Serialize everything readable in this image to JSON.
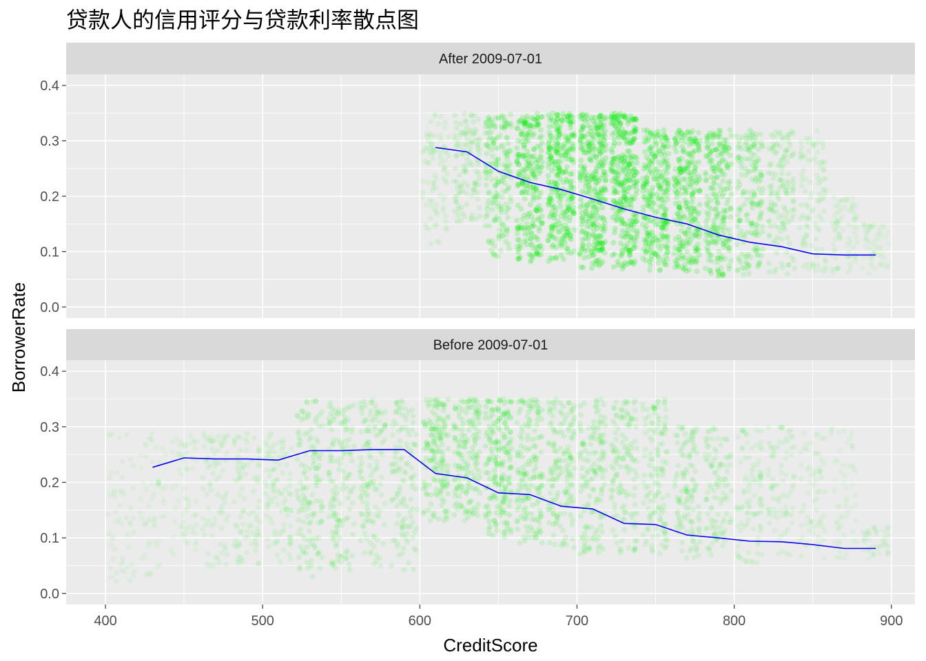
{
  "chart_data": {
    "type": "scatter",
    "title": "贷款人的信用评分与贷款利率散点图",
    "xlabel": "CreditScore",
    "ylabel": "BorrowerRate",
    "xlim": [
      375,
      915
    ],
    "ylim": [
      -0.02,
      0.42
    ],
    "x_ticks": [
      "400",
      "500",
      "600",
      "700",
      "800",
      "900"
    ],
    "y_ticks": [
      "0.0",
      "0.1",
      "0.2",
      "0.3",
      "0.4"
    ],
    "grid": true,
    "point_color": "#00ee00",
    "line_color": "#0000ee",
    "panel_bg": "#ebebeb",
    "strip_bg": "#d9d9d9",
    "panels": [
      {
        "label": "After 2009-07-01",
        "points": [
          {
            "score": 610,
            "min": 0.11,
            "max": 0.35,
            "density": 0.18
          },
          {
            "score": 630,
            "min": 0.15,
            "max": 0.35,
            "density": 0.28
          },
          {
            "score": 650,
            "min": 0.09,
            "max": 0.35,
            "density": 0.55
          },
          {
            "score": 670,
            "min": 0.08,
            "max": 0.35,
            "density": 0.8
          },
          {
            "score": 690,
            "min": 0.08,
            "max": 0.35,
            "density": 0.9
          },
          {
            "score": 710,
            "min": 0.07,
            "max": 0.35,
            "density": 0.95
          },
          {
            "score": 730,
            "min": 0.065,
            "max": 0.35,
            "density": 0.95
          },
          {
            "score": 750,
            "min": 0.065,
            "max": 0.32,
            "density": 0.85
          },
          {
            "score": 770,
            "min": 0.06,
            "max": 0.32,
            "density": 0.8
          },
          {
            "score": 790,
            "min": 0.055,
            "max": 0.32,
            "density": 0.7
          },
          {
            "score": 810,
            "min": 0.055,
            "max": 0.32,
            "density": 0.5
          },
          {
            "score": 830,
            "min": 0.055,
            "max": 0.32,
            "density": 0.35
          },
          {
            "score": 850,
            "min": 0.06,
            "max": 0.32,
            "density": 0.22
          },
          {
            "score": 870,
            "min": 0.06,
            "max": 0.2,
            "density": 0.12
          },
          {
            "score": 890,
            "min": 0.06,
            "max": 0.15,
            "density": 0.06
          }
        ],
        "mean_line": {
          "x": [
            610,
            630,
            650,
            670,
            690,
            710,
            730,
            750,
            770,
            790,
            810,
            830,
            850,
            870,
            890
          ],
          "y": [
            0.288,
            0.28,
            0.245,
            0.225,
            0.212,
            0.195,
            0.177,
            0.162,
            0.15,
            0.13,
            0.117,
            0.109,
            0.096,
            0.094,
            0.094
          ]
        }
      },
      {
        "label": "Before 2009-07-01",
        "points": [
          {
            "score": 410,
            "min": 0.02,
            "max": 0.29,
            "density": 0.05
          },
          {
            "score": 430,
            "min": 0.03,
            "max": 0.29,
            "density": 0.06
          },
          {
            "score": 450,
            "min": 0.04,
            "max": 0.29,
            "density": 0.08
          },
          {
            "score": 470,
            "min": 0.04,
            "max": 0.29,
            "density": 0.14
          },
          {
            "score": 490,
            "min": 0.05,
            "max": 0.29,
            "density": 0.18
          },
          {
            "score": 510,
            "min": 0.05,
            "max": 0.29,
            "density": 0.2
          },
          {
            "score": 530,
            "min": 0.03,
            "max": 0.35,
            "density": 0.35
          },
          {
            "score": 550,
            "min": 0.04,
            "max": 0.35,
            "density": 0.35
          },
          {
            "score": 570,
            "min": 0.04,
            "max": 0.35,
            "density": 0.33
          },
          {
            "score": 590,
            "min": 0.04,
            "max": 0.35,
            "density": 0.3
          },
          {
            "score": 610,
            "min": 0.13,
            "max": 0.35,
            "density": 0.45
          },
          {
            "score": 630,
            "min": 0.13,
            "max": 0.35,
            "density": 0.45
          },
          {
            "score": 650,
            "min": 0.1,
            "max": 0.35,
            "density": 0.55
          },
          {
            "score": 670,
            "min": 0.09,
            "max": 0.35,
            "density": 0.45
          },
          {
            "score": 690,
            "min": 0.08,
            "max": 0.35,
            "density": 0.4
          },
          {
            "score": 710,
            "min": 0.07,
            "max": 0.35,
            "density": 0.38
          },
          {
            "score": 730,
            "min": 0.07,
            "max": 0.35,
            "density": 0.35
          },
          {
            "score": 750,
            "min": 0.07,
            "max": 0.35,
            "density": 0.33
          },
          {
            "score": 770,
            "min": 0.06,
            "max": 0.3,
            "density": 0.3
          },
          {
            "score": 790,
            "min": 0.06,
            "max": 0.3,
            "density": 0.25
          },
          {
            "score": 810,
            "min": 0.055,
            "max": 0.3,
            "density": 0.2
          },
          {
            "score": 830,
            "min": 0.055,
            "max": 0.3,
            "density": 0.15
          },
          {
            "score": 850,
            "min": 0.055,
            "max": 0.3,
            "density": 0.1
          },
          {
            "score": 870,
            "min": 0.06,
            "max": 0.3,
            "density": 0.06
          },
          {
            "score": 890,
            "min": 0.06,
            "max": 0.12,
            "density": 0.03
          }
        ],
        "mean_line": {
          "x": [
            430,
            450,
            470,
            490,
            510,
            530,
            550,
            570,
            590,
            610,
            630,
            650,
            670,
            690,
            710,
            730,
            750,
            770,
            790,
            810,
            830,
            850,
            870,
            890
          ],
          "y": [
            0.227,
            0.244,
            0.242,
            0.242,
            0.24,
            0.257,
            0.257,
            0.259,
            0.259,
            0.216,
            0.208,
            0.181,
            0.178,
            0.157,
            0.152,
            0.126,
            0.124,
            0.105,
            0.1,
            0.094,
            0.093,
            0.088,
            0.081,
            0.081
          ]
        }
      }
    ]
  }
}
